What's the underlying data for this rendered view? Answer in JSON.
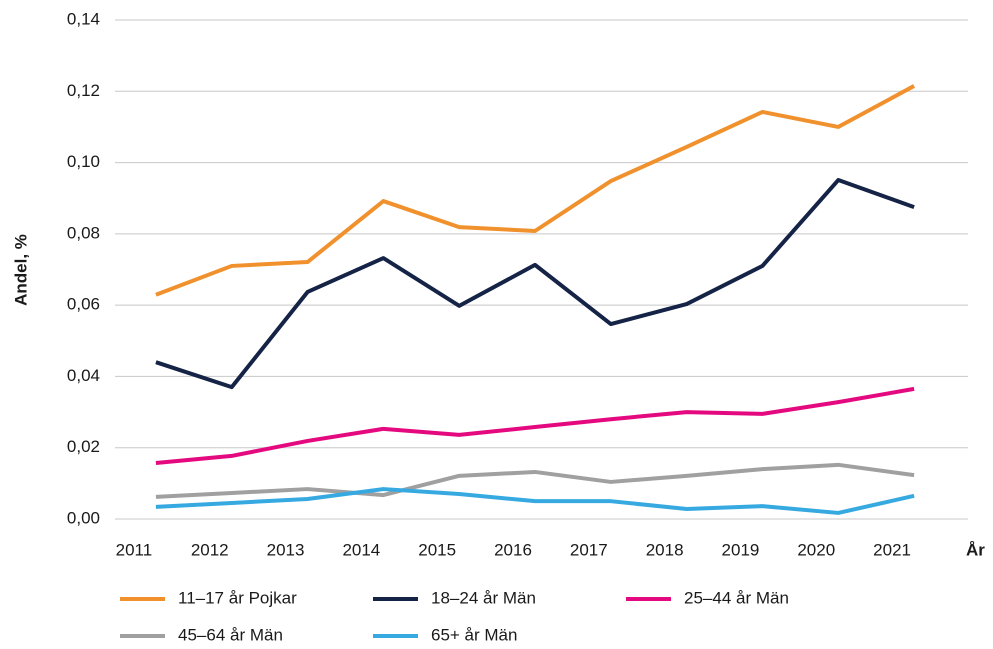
{
  "chart_data": {
    "type": "line",
    "y_label": "Andel, %",
    "x_label": "År",
    "categories": [
      "2011",
      "2012",
      "2013",
      "2014",
      "2015",
      "2016",
      "2017",
      "2018",
      "2019",
      "2020",
      "2021"
    ],
    "series": [
      {
        "name": "11–17 år Pojkar",
        "color": "#f0912d",
        "values": [
          0.0629,
          0.071,
          0.0721,
          0.0892,
          0.0819,
          0.0808,
          0.0948,
          0.1044,
          0.1142,
          0.11,
          0.1215
        ]
      },
      {
        "name": "18–24 år Män",
        "color": "#142346",
        "values": [
          0.044,
          0.037,
          0.0637,
          0.0732,
          0.0598,
          0.0713,
          0.0547,
          0.0603,
          0.071,
          0.0951,
          0.0875
        ]
      },
      {
        "name": "25–44 år Män",
        "color": "#e5097f",
        "values": [
          0.0157,
          0.0177,
          0.0219,
          0.0253,
          0.0236,
          0.0258,
          0.028,
          0.03,
          0.0295,
          0.0328,
          0.0365
        ]
      },
      {
        "name": "45–64 år Män",
        "color": "#a0a0a0",
        "values": [
          0.0062,
          0.0073,
          0.0084,
          0.0067,
          0.0121,
          0.0132,
          0.0104,
          0.0121,
          0.014,
          0.0152,
          0.0123
        ]
      },
      {
        "name": "65+ år Män",
        "color": "#36a9e1",
        "values": [
          0.0034,
          0.0045,
          0.0056,
          0.0084,
          0.007,
          0.005,
          0.005,
          0.0028,
          0.0036,
          0.0017,
          0.0065
        ]
      }
    ],
    "ylim": [
      0,
      0.14
    ],
    "yticks": [
      {
        "value": 0,
        "label": "0,00"
      },
      {
        "value": 0.02,
        "label": "0,02"
      },
      {
        "value": 0.04,
        "label": "0,04"
      },
      {
        "value": 0.06,
        "label": "0,06"
      },
      {
        "value": 0.08,
        "label": "0,08"
      },
      {
        "value": 0.1,
        "label": "0,10"
      },
      {
        "value": 0.12,
        "label": "0,12"
      },
      {
        "value": 0.14,
        "label": "0,14"
      }
    ],
    "grid": true,
    "legend": "bottom"
  }
}
